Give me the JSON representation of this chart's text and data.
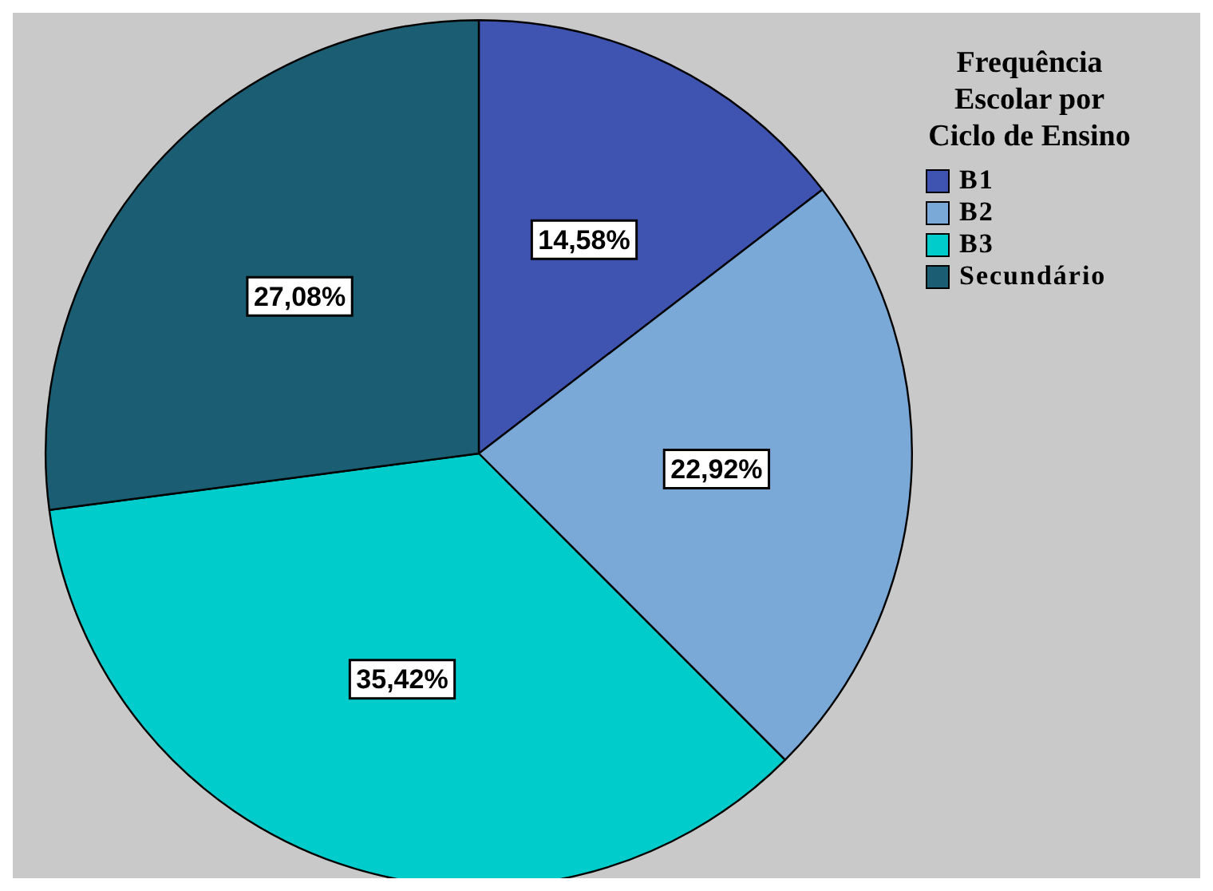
{
  "chart_data": {
    "type": "pie",
    "legend_title": "Frequência Escolar por Ciclo de Ensino",
    "legend": "top right",
    "categories": [
      "B1",
      "B2",
      "B3",
      "Secundário"
    ],
    "values": [
      14.58,
      22.92,
      35.42,
      27.08
    ],
    "colors": [
      "#3f54b0",
      "#7aa9d8",
      "#00cccc",
      "#1b5d72"
    ],
    "value_labels": [
      "14,58%",
      "22,92%",
      "35,42%",
      "27,08%"
    ]
  }
}
